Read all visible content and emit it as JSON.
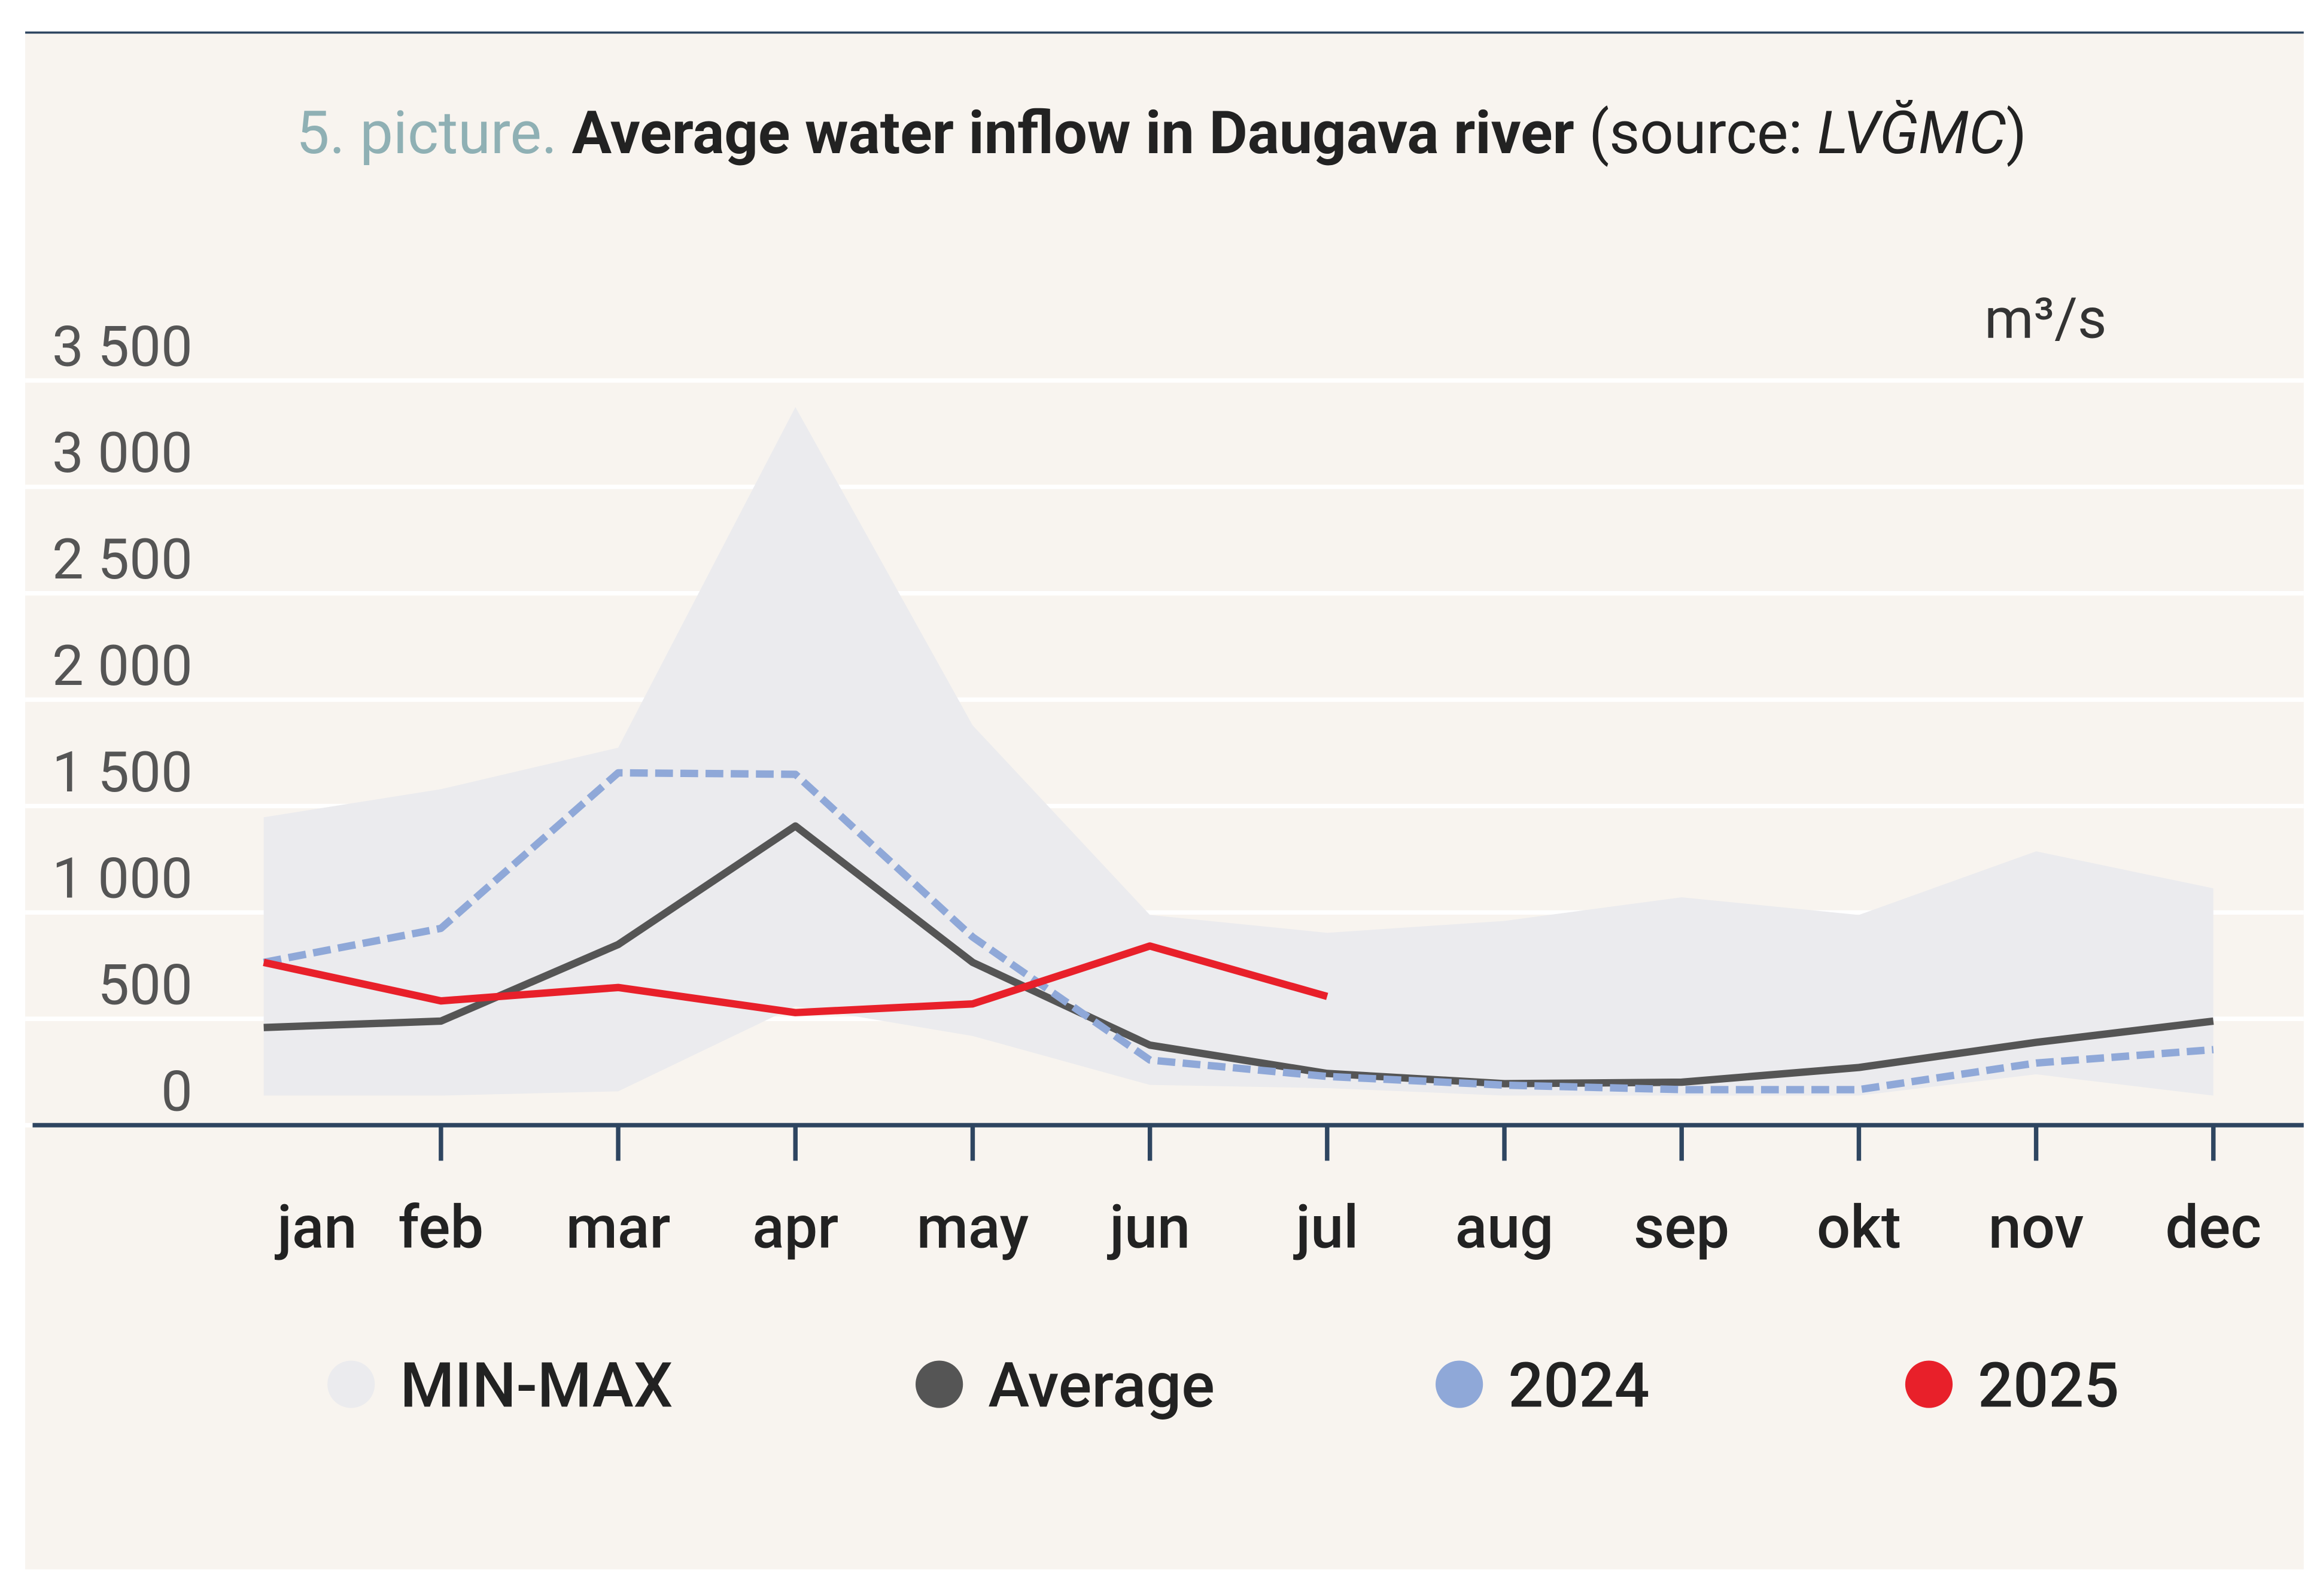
{
  "chart_data": {
    "type": "line",
    "title_prefix": "5. picture.",
    "title": "Average water inflow in Daugava river",
    "source_open": "(source: ",
    "source": "LVĞMC",
    "source_close": ")",
    "unit": "m³/s",
    "categories": [
      "jan",
      "feb",
      "mar",
      "apr",
      "may",
      "jun",
      "jul",
      "aug",
      "sep",
      "okt",
      "nov",
      "dec"
    ],
    "series": [
      {
        "name": "MIN-MAX",
        "color": "#ebebee",
        "values": [
          1308,
          1440,
          1635,
          3236,
          1740,
          849,
          765,
          821,
          932,
          849,
          1148,
          974
        ],
        "lower": [
          0,
          0,
          20,
          420,
          280,
          50,
          35,
          0,
          0,
          0,
          100,
          0
        ]
      },
      {
        "name": "Average",
        "color": "#555555",
        "values": [
          320,
          350,
          710,
          1267,
          626,
          237,
          104,
          56,
          63,
          132,
          250,
          350
        ]
      },
      {
        "name": "2024",
        "color": "#8fa8d8",
        "dashed": true,
        "values": [
          626,
          786,
          1517,
          1510,
          745,
          167,
          90,
          49,
          28,
          28,
          153,
          216
        ]
      },
      {
        "name": "2025",
        "color": "#e8202a",
        "values": [
          626,
          445,
          508,
          390,
          431,
          703,
          466,
          null,
          null,
          null,
          null,
          null
        ]
      }
    ],
    "ylim": [
      0,
      3500
    ],
    "yticks": [
      0,
      500,
      {
        "value": 1000,
        "label": "1 000"
      },
      {
        "value": 1500,
        "label": "1 500"
      },
      {
        "value": 2000,
        "label": "2 000"
      },
      {
        "value": 2500,
        "label": "2 500"
      },
      {
        "value": 3000,
        "label": "3 000"
      },
      {
        "value": 3500,
        "label": "3 500"
      }
    ],
    "grid": true
  }
}
